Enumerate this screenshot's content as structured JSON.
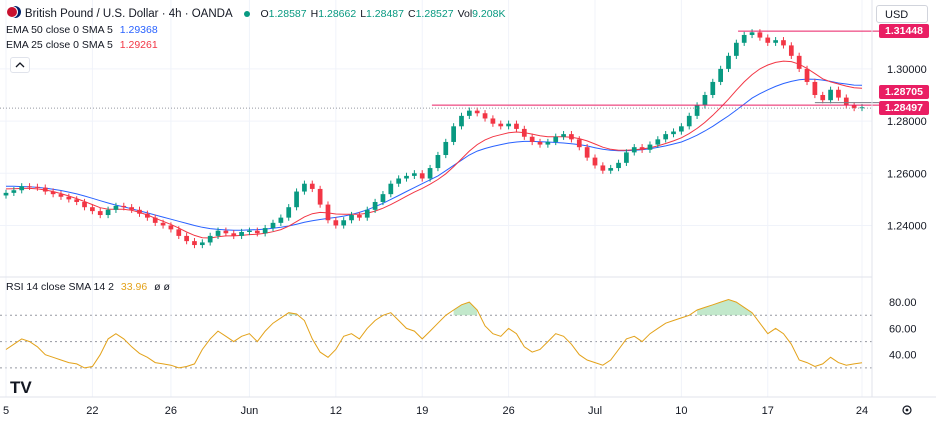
{
  "header": {
    "symbol_title": "British Pound / U.S. Dollar · 4h · OANDA",
    "ohlc": [
      {
        "k": "O",
        "v": "1.28587"
      },
      {
        "k": "H",
        "v": "1.28662"
      },
      {
        "k": "L",
        "v": "1.28487"
      },
      {
        "k": "C",
        "v": "1.28527"
      },
      {
        "k": "Vol",
        "v": "9.208K"
      }
    ],
    "currency": "USD"
  },
  "indicators": {
    "ema50": {
      "label": "EMA 50 close 0 SMA 5",
      "value": "1.29368",
      "color": "#2962ff"
    },
    "ema25": {
      "label": "EMA 25 close 0 SMA 5",
      "value": "1.29261",
      "color": "#f23645"
    },
    "rsi": {
      "label": "RSI 14 close SMA 14 2",
      "value": "33.96",
      "extra": "ø ø",
      "color": "#e3a21a"
    }
  },
  "price_badges": [
    {
      "text": "1.31448",
      "color": "#e91e63"
    },
    {
      "text": "1.28705",
      "color": "#e91e63"
    },
    {
      "text": "1.28497",
      "color": "#e91e63"
    }
  ],
  "watermark": "TV",
  "colors": {
    "up": "#089981",
    "down": "#f23645",
    "ema50": "#2962ff",
    "ema25": "#f23645",
    "rsi": "#e3a21a",
    "fill": "#9ad8a8"
  },
  "chart_data": {
    "type": "candlestick",
    "title": "British Pound / U.S. Dollar · 4h · OANDA",
    "price_ticks": [
      1.24,
      1.26,
      1.28,
      1.3
    ],
    "rsi_ticks": [
      40,
      60,
      80
    ],
    "ylim": [
      1.226,
      1.3195
    ],
    "rsi_ylim": [
      20,
      90
    ],
    "x_ticks": [
      "5",
      "22",
      "26",
      "Jun",
      "12",
      "19",
      "26",
      "Jul",
      "10",
      "17",
      "24"
    ],
    "close": [
      1.2525,
      1.2535,
      1.255,
      1.2548,
      1.2545,
      1.253,
      1.252,
      1.251,
      1.25,
      1.249,
      1.247,
      1.2455,
      1.244,
      1.246,
      1.2475,
      1.247,
      1.246,
      1.2445,
      1.243,
      1.241,
      1.24,
      1.2385,
      1.236,
      1.234,
      1.2325,
      1.2335,
      1.236,
      1.238,
      1.237,
      1.236,
      1.2375,
      1.238,
      1.237,
      1.239,
      1.241,
      1.243,
      1.247,
      1.253,
      1.256,
      1.254,
      1.248,
      1.242,
      1.24,
      1.242,
      1.244,
      1.243,
      1.246,
      1.249,
      1.252,
      1.256,
      1.258,
      1.259,
      1.26,
      1.258,
      1.262,
      1.267,
      1.272,
      1.278,
      1.282,
      1.284,
      1.283,
      1.281,
      1.279,
      1.278,
      1.279,
      1.277,
      1.274,
      1.272,
      1.271,
      1.272,
      1.274,
      1.275,
      1.273,
      1.27,
      1.266,
      1.263,
      1.261,
      1.262,
      1.264,
      1.268,
      1.27,
      1.269,
      1.271,
      1.273,
      1.275,
      1.276,
      1.278,
      1.282,
      1.286,
      1.29,
      1.295,
      1.3,
      1.305,
      1.31,
      1.313,
      1.314,
      1.312,
      1.31,
      1.311,
      1.309,
      1.305,
      1.3,
      1.295,
      1.29,
      1.288,
      1.292,
      1.289,
      1.286,
      1.285,
      1.2853
    ],
    "ema50": [
      1.255,
      1.255,
      1.2549,
      1.2548,
      1.2546,
      1.2543,
      1.2539,
      1.2534,
      1.2528,
      1.2521,
      1.2513,
      1.2504,
      1.2495,
      1.2486,
      1.2478,
      1.2471,
      1.2464,
      1.2456,
      1.2448,
      1.244,
      1.2432,
      1.2424,
      1.2416,
      1.2408,
      1.24,
      1.2393,
      1.2388,
      1.2385,
      1.2383,
      1.2382,
      1.2382,
      1.2383,
      1.2384,
      1.2386,
      1.2389,
      1.2393,
      1.2398,
      1.2405,
      1.2412,
      1.2418,
      1.2423,
      1.2427,
      1.2431,
      1.2436,
      1.2442,
      1.245,
      1.246,
      1.2472,
      1.2485,
      1.25,
      1.2515,
      1.253,
      1.2545,
      1.256,
      1.2575,
      1.259,
      1.261,
      1.263,
      1.265,
      1.267,
      1.2685,
      1.2695,
      1.2703,
      1.271,
      1.2716,
      1.272,
      1.2722,
      1.2722,
      1.2721,
      1.272,
      1.2718,
      1.2716,
      1.2713,
      1.271,
      1.2705,
      1.2698,
      1.2692,
      1.2688,
      1.2686,
      1.2686,
      1.2688,
      1.269,
      1.2694,
      1.2699,
      1.2705,
      1.2712,
      1.272,
      1.2732,
      1.2746,
      1.2762,
      1.278,
      1.28,
      1.282,
      1.2842,
      1.2865,
      1.2888,
      1.2905,
      1.292,
      1.2933,
      1.2944,
      1.2952,
      1.2958,
      1.2961,
      1.296,
      1.2957,
      1.2952,
      1.2946,
      1.2942,
      1.2938,
      1.2937
    ],
    "ema25": [
      1.254,
      1.2541,
      1.2542,
      1.2542,
      1.254,
      1.2536,
      1.253,
      1.2522,
      1.2513,
      1.2503,
      1.2492,
      1.248,
      1.2468,
      1.2462,
      1.2462,
      1.2462,
      1.2458,
      1.245,
      1.244,
      1.2428,
      1.2416,
      1.2404,
      1.239,
      1.2375,
      1.2362,
      1.2353,
      1.2352,
      1.2357,
      1.236,
      1.236,
      1.2362,
      1.2365,
      1.2366,
      1.237,
      1.2376,
      1.2384,
      1.2397,
      1.2415,
      1.2433,
      1.2445,
      1.245,
      1.2448,
      1.2444,
      1.2443,
      1.2443,
      1.2443,
      1.2447,
      1.2455,
      1.2466,
      1.248,
      1.2496,
      1.2512,
      1.2528,
      1.2542,
      1.2558,
      1.2576,
      1.2598,
      1.2625,
      1.2655,
      1.2685,
      1.271,
      1.2728,
      1.274,
      1.2748,
      1.2755,
      1.2758,
      1.2756,
      1.275,
      1.2744,
      1.274,
      1.274,
      1.274,
      1.2738,
      1.2733,
      1.2724,
      1.2712,
      1.27,
      1.2692,
      1.2688,
      1.2688,
      1.269,
      1.2693,
      1.2698,
      1.2705,
      1.2714,
      1.2724,
      1.2736,
      1.2752,
      1.2772,
      1.2795,
      1.2822,
      1.2852,
      1.2884,
      1.2918,
      1.295,
      1.2978,
      1.3,
      1.3015,
      1.3025,
      1.303,
      1.3028,
      1.3018,
      1.3002,
      1.2982,
      1.2962,
      1.295,
      1.2942,
      1.2934,
      1.2928,
      1.2926
    ],
    "rsi": [
      44,
      48,
      52,
      50,
      46,
      40,
      38,
      36,
      34,
      33,
      30,
      31,
      40,
      52,
      56,
      52,
      46,
      41,
      38,
      34,
      33,
      32,
      30,
      31,
      33,
      44,
      52,
      58,
      54,
      50,
      54,
      56,
      50,
      58,
      64,
      68,
      72,
      71,
      66,
      52,
      42,
      38,
      44,
      54,
      56,
      52,
      60,
      66,
      70,
      72,
      66,
      60,
      58,
      52,
      58,
      64,
      70,
      74,
      78,
      80,
      74,
      62,
      56,
      54,
      60,
      56,
      46,
      42,
      44,
      50,
      56,
      54,
      48,
      40,
      36,
      34,
      32,
      36,
      44,
      52,
      54,
      50,
      56,
      60,
      64,
      66,
      68,
      70,
      74,
      76,
      78,
      80,
      82,
      80,
      76,
      72,
      64,
      56,
      60,
      56,
      48,
      36,
      34,
      31,
      33,
      38,
      34,
      32,
      33,
      33.96
    ],
    "resistance_levels": [
      1.31448,
      1.28705
    ],
    "current_price": 1.28497
  }
}
